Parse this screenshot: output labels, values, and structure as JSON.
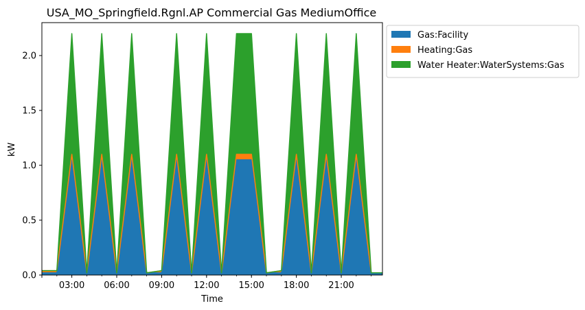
{
  "chart_data": {
    "type": "area",
    "title": "USA_MO_Springfield.Rgnl.AP Commercial Gas MediumOffice",
    "xlabel": "Time",
    "ylabel": "kW",
    "ylim": [
      0,
      2.3
    ],
    "xlim": [
      1,
      23.75
    ],
    "grid": false,
    "legend_position": "top-right",
    "x_ticks": [
      {
        "value": 3,
        "label": "03:00"
      },
      {
        "value": 6,
        "label": "06:00"
      },
      {
        "value": 9,
        "label": "09:00"
      },
      {
        "value": 12,
        "label": "12:00"
      },
      {
        "value": 15,
        "label": "15:00"
      },
      {
        "value": 18,
        "label": "18:00"
      },
      {
        "value": 21,
        "label": "21:00"
      }
    ],
    "y_ticks": [
      {
        "value": 0,
        "label": "0.0"
      },
      {
        "value": 0.5,
        "label": "0.5"
      },
      {
        "value": 1,
        "label": "1.0"
      },
      {
        "value": 1.5,
        "label": "1.5"
      },
      {
        "value": 2,
        "label": "2.0"
      }
    ],
    "x": [
      1,
      2,
      3,
      4,
      5,
      6,
      7,
      8,
      9,
      10,
      11,
      12,
      13,
      14,
      15,
      16,
      17,
      18,
      19,
      20,
      21,
      22,
      23,
      23.75
    ],
    "series": [
      {
        "name": "Gas:Facility",
        "color": "#1f77b4",
        "values": [
          0.02,
          0.02,
          1.05,
          0.02,
          1.05,
          0.02,
          1.05,
          0.02,
          0.02,
          1.05,
          0.02,
          1.05,
          0.02,
          1.05,
          1.05,
          0.02,
          0.02,
          1.05,
          0.02,
          1.05,
          0.02,
          1.05,
          0.02,
          0.02
        ]
      },
      {
        "name": "Heating:Gas",
        "color": "#ff7f0e",
        "values": [
          0.02,
          0.02,
          0.05,
          0.0,
          0.05,
          0.0,
          0.05,
          0.0,
          0.02,
          0.05,
          0.0,
          0.05,
          0.0,
          0.05,
          0.05,
          0.0,
          0.02,
          0.05,
          0.0,
          0.05,
          0.0,
          0.05,
          0.0,
          0.0
        ]
      },
      {
        "name": "Water Heater:WaterSystems:Gas",
        "color": "#2ca02c",
        "values": [
          0.0,
          0.0,
          1.1,
          0.0,
          1.1,
          0.0,
          1.1,
          0.0,
          0.0,
          1.1,
          0.0,
          1.1,
          0.0,
          1.1,
          1.1,
          0.0,
          0.0,
          1.1,
          0.0,
          1.1,
          0.0,
          1.1,
          0.0,
          0.0
        ]
      }
    ]
  }
}
